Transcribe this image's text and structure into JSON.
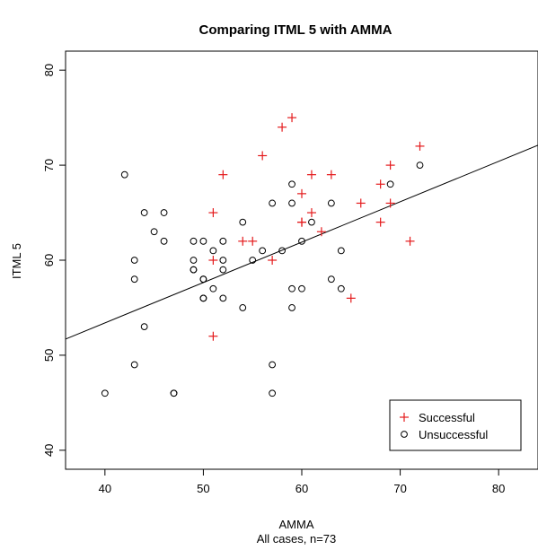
{
  "chart_data": {
    "type": "scatter",
    "title": "Comparing ITML 5 with AMMA",
    "xlabel": "AMMA",
    "subtitle": "All cases, n=73",
    "ylabel": "ITML 5",
    "xlim": [
      36,
      84
    ],
    "ylim": [
      38,
      82
    ],
    "xticks": [
      40,
      50,
      60,
      70,
      80
    ],
    "yticks": [
      40,
      50,
      60,
      70,
      80
    ],
    "grid": false,
    "legend_position": "bottom-right",
    "series": [
      {
        "name": "Successful",
        "marker": "plus",
        "color": "#e41a1c",
        "points": [
          [
            51,
            65
          ],
          [
            51,
            60
          ],
          [
            51,
            52
          ],
          [
            52,
            69
          ],
          [
            54,
            62
          ],
          [
            55,
            62
          ],
          [
            56,
            71
          ],
          [
            57,
            60
          ],
          [
            58,
            74
          ],
          [
            59,
            75
          ],
          [
            60,
            64
          ],
          [
            60,
            64
          ],
          [
            60,
            67
          ],
          [
            61,
            69
          ],
          [
            61,
            65
          ],
          [
            62,
            63
          ],
          [
            63,
            69
          ],
          [
            65,
            56
          ],
          [
            66,
            66
          ],
          [
            68,
            68
          ],
          [
            68,
            64
          ],
          [
            69,
            70
          ],
          [
            69,
            66
          ],
          [
            71,
            62
          ],
          [
            72,
            72
          ]
        ]
      },
      {
        "name": "Unsuccessful",
        "marker": "circle",
        "color": "#000000",
        "points": [
          [
            40,
            46
          ],
          [
            42,
            69
          ],
          [
            43,
            60
          ],
          [
            43,
            58
          ],
          [
            43,
            49
          ],
          [
            44,
            65
          ],
          [
            44,
            53
          ],
          [
            45,
            63
          ],
          [
            46,
            65
          ],
          [
            46,
            62
          ],
          [
            47,
            46
          ],
          [
            47,
            46
          ],
          [
            49,
            62
          ],
          [
            49,
            60
          ],
          [
            49,
            59
          ],
          [
            49,
            59
          ],
          [
            50,
            62
          ],
          [
            50,
            58
          ],
          [
            50,
            58
          ],
          [
            50,
            56
          ],
          [
            50,
            56
          ],
          [
            51,
            61
          ],
          [
            51,
            57
          ],
          [
            52,
            62
          ],
          [
            52,
            60
          ],
          [
            52,
            59
          ],
          [
            52,
            56
          ],
          [
            54,
            64
          ],
          [
            54,
            55
          ],
          [
            55,
            60
          ],
          [
            56,
            61
          ],
          [
            57,
            66
          ],
          [
            57,
            49
          ],
          [
            57,
            46
          ],
          [
            58,
            61
          ],
          [
            59,
            68
          ],
          [
            59,
            66
          ],
          [
            59,
            57
          ],
          [
            59,
            55
          ],
          [
            60,
            62
          ],
          [
            60,
            57
          ],
          [
            61,
            64
          ],
          [
            63,
            66
          ],
          [
            63,
            58
          ],
          [
            64,
            61
          ],
          [
            64,
            57
          ],
          [
            69,
            68
          ],
          [
            72,
            70
          ]
        ]
      }
    ],
    "fit_line": {
      "intercept": 36.4,
      "slope": 0.425
    }
  }
}
